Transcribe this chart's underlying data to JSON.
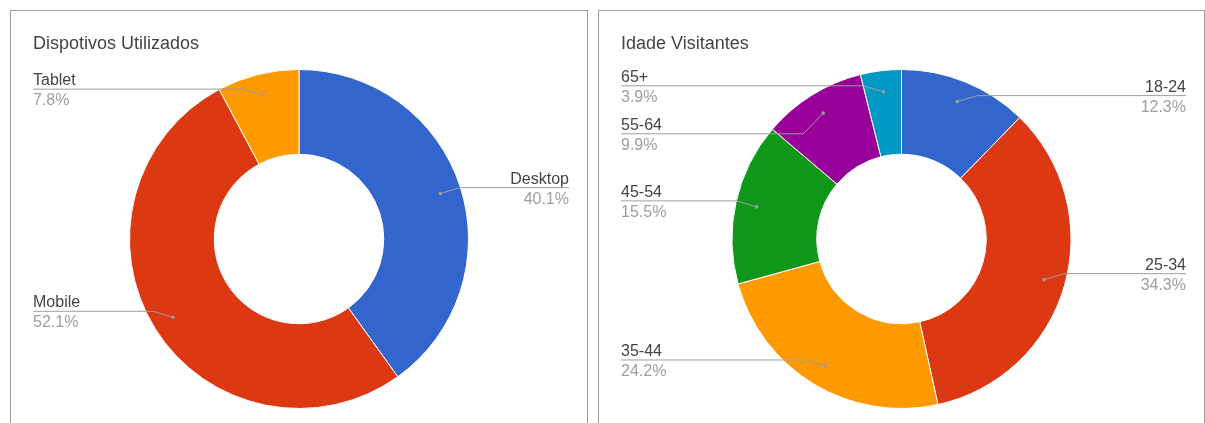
{
  "chart_data": [
    {
      "type": "donut",
      "title": "Dispotivos Utilizados",
      "categories": [
        "Desktop",
        "Mobile",
        "Tablet"
      ],
      "values": [
        40.1,
        52.1,
        7.8
      ],
      "value_labels": [
        "40.1%",
        "52.1%",
        "7.8%"
      ],
      "colors": [
        "#3366cc",
        "#dc3912",
        "#ff9900"
      ]
    },
    {
      "type": "donut",
      "title": "Idade Visitantes",
      "categories": [
        "18-24",
        "25-34",
        "35-44",
        "45-54",
        "55-64",
        "65+"
      ],
      "values": [
        12.3,
        34.3,
        24.2,
        15.5,
        9.9,
        3.9
      ],
      "value_labels": [
        "12.3%",
        "34.3%",
        "24.2%",
        "15.5%",
        "9.9%",
        "3.9%"
      ],
      "colors": [
        "#3366cc",
        "#dc3912",
        "#ff9900",
        "#109618",
        "#990099",
        "#0099c6"
      ]
    }
  ]
}
